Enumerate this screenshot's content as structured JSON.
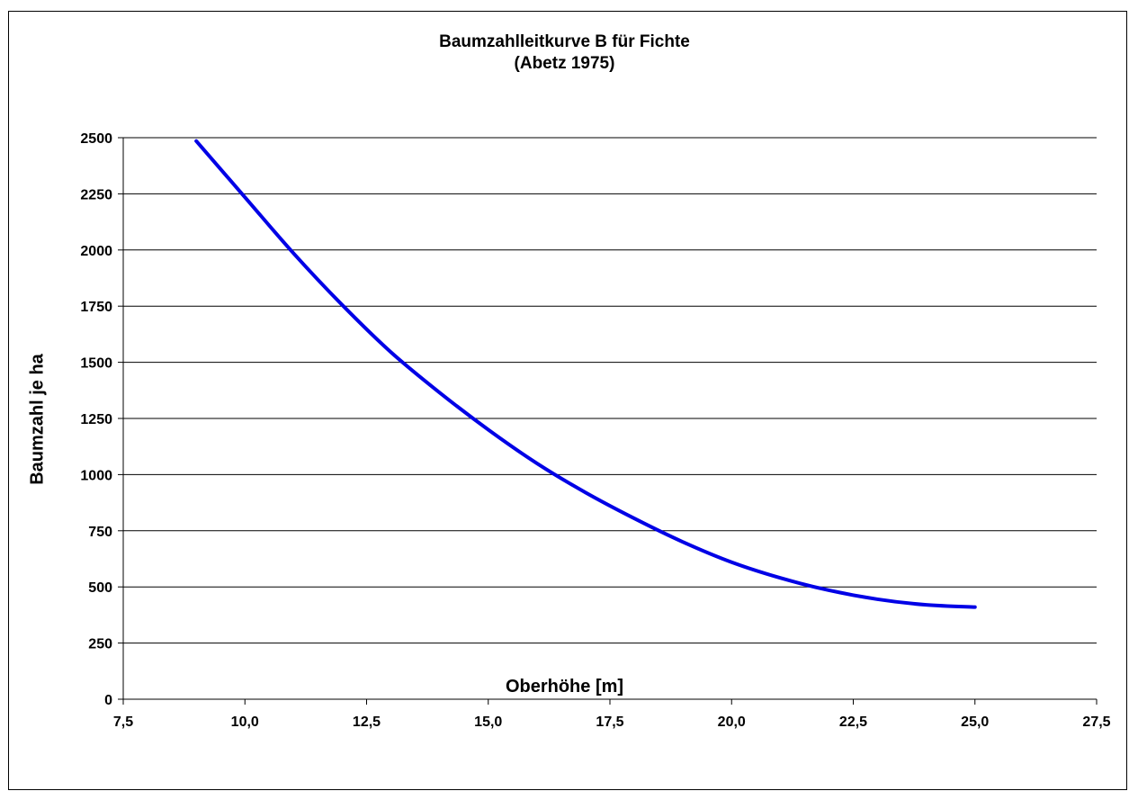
{
  "chart_data": {
    "type": "line",
    "title": "Baumzahlleitkurve B für Fichte",
    "subtitle": "(Abetz 1975)",
    "xlabel": "Oberhöhe [m]",
    "ylabel": "Baumzahl je ha",
    "xlim": [
      7.5,
      27.5
    ],
    "ylim": [
      0,
      2500
    ],
    "x_ticks": [
      "7,5",
      "10,0",
      "12,5",
      "15,0",
      "17,5",
      "20,0",
      "22,5",
      "25,0",
      "27,5"
    ],
    "y_ticks": [
      "0",
      "250",
      "500",
      "750",
      "1000",
      "1250",
      "1500",
      "1750",
      "2000",
      "2250",
      "2500"
    ],
    "grid": "horizontal",
    "series": [
      {
        "color": "#0000e6",
        "x": [
          9.0,
          10.0,
          11.0,
          12.0,
          13.0,
          14.0,
          15.0,
          16.0,
          17.0,
          18.0,
          19.0,
          20.0,
          21.0,
          22.0,
          23.0,
          24.0,
          25.0
        ],
        "y": [
          2485,
          2235,
          1985,
          1755,
          1545,
          1365,
          1200,
          1050,
          920,
          805,
          700,
          610,
          540,
          485,
          445,
          420,
          410
        ]
      }
    ]
  }
}
